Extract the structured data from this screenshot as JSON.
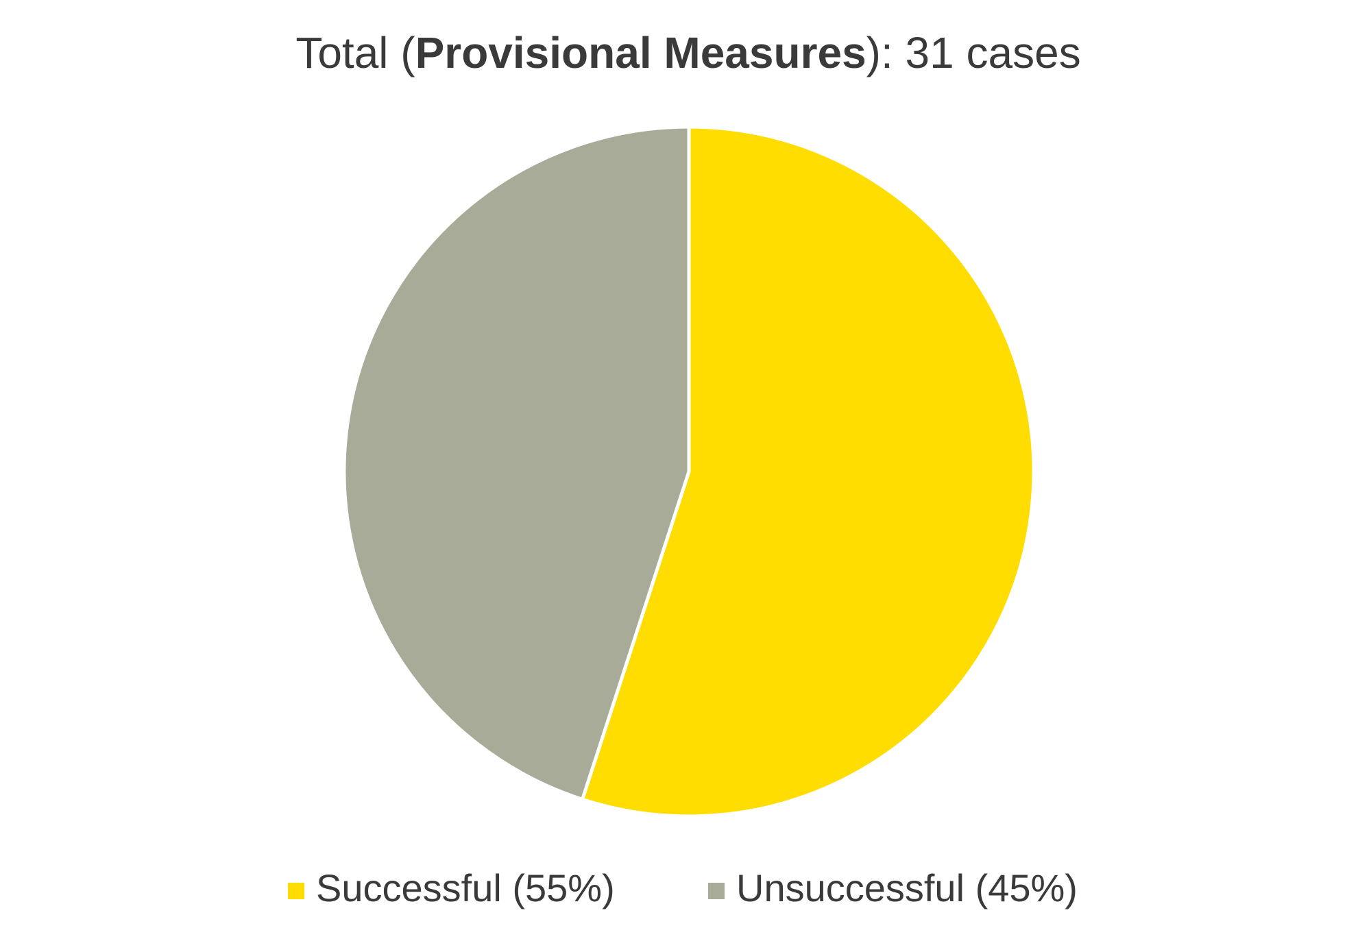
{
  "chart_data": {
    "type": "pie",
    "title": [
      "Total (",
      "Provisional Measures",
      "): 31 cases"
    ],
    "categories": [
      "Successful (55%)",
      "Unsuccessful (45%)"
    ],
    "values": [
      55,
      45
    ],
    "colors": [
      "#FFDD00",
      "#A8AB98"
    ],
    "legend": "bottom"
  }
}
